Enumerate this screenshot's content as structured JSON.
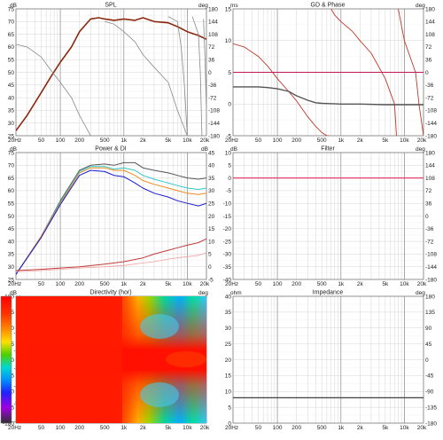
{
  "panels": {
    "spl": {
      "title": "SPL",
      "left_unit": "dB",
      "right_unit": "deg"
    },
    "gd": {
      "title": "GD & Phase",
      "left_unit": "ms",
      "right_unit": "deg"
    },
    "power": {
      "title": "Power & DI",
      "left_unit": "dB",
      "right_unit": "dB"
    },
    "filter": {
      "title": "Filter",
      "left_unit": "dB",
      "right_unit": "deg"
    },
    "directivity": {
      "title": "Directivity (hor)",
      "left_unit": "dB",
      "right_unit": "deg"
    },
    "impedance": {
      "title": "Impedance",
      "left_unit": "ohm",
      "right_unit": "deg"
    }
  },
  "colors": {
    "grid": "#d4d4d4",
    "frame": "#7a7a7a",
    "spl_main": "#8b2a10",
    "spl_gray": "#8a8a8a",
    "phase_red": "#c0392b",
    "magenta": "#c2185b",
    "gd_gray": "#555555",
    "di_red": "#c23a3a",
    "di_pink": "#f0a0a0",
    "filter_line": "#e0406a",
    "imp_line": "#404040"
  },
  "chart_data": [
    {
      "type": "line",
      "title": "SPL",
      "xscale": "log",
      "xlim": [
        20,
        20000
      ],
      "x_ticks": [
        "20Hz",
        "50",
        "100",
        "200",
        "500",
        "1k",
        "2k",
        "5k",
        "10k",
        "20k"
      ],
      "ylim": [
        25,
        75
      ],
      "y_ticks": [
        "75",
        "70",
        "65",
        "60",
        "55",
        "50",
        "45",
        "40",
        "35",
        "30",
        "25"
      ],
      "y2lim": [
        -180,
        180
      ],
      "y2_ticks": [
        "180",
        "144",
        "108",
        "72",
        "36",
        "0",
        "-36",
        "-72",
        "-108",
        "-144",
        "-180"
      ],
      "series": [
        {
          "role": "main",
          "x": [
            20,
            30,
            50,
            70,
            100,
            150,
            200,
            300,
            400,
            500,
            700,
            1000,
            1500,
            2000,
            3000,
            5000,
            7000,
            10000,
            15000,
            20000
          ],
          "y": [
            27,
            33,
            42,
            48,
            54,
            60,
            66,
            71,
            71.5,
            71,
            70.5,
            71,
            70.5,
            71.5,
            70,
            69.5,
            68,
            66,
            64.5,
            63
          ]
        },
        {
          "role": "gray",
          "x": [
            20,
            30,
            50,
            70,
            100,
            150,
            200,
            300
          ],
          "y": [
            61,
            60,
            56,
            51,
            46,
            40,
            33,
            25
          ]
        },
        {
          "role": "gray",
          "x": [
            500,
            700,
            1000,
            1500,
            2000,
            3000,
            5000,
            7000,
            10000
          ],
          "y": [
            70,
            69,
            66,
            62,
            57,
            52,
            46,
            35,
            25
          ]
        },
        {
          "role": "gray",
          "x": [
            5000,
            7000,
            8000,
            9000,
            10000
          ],
          "y": [
            72,
            70,
            60,
            45,
            25
          ]
        },
        {
          "role": "gray",
          "x": [
            12000,
            15000,
            16000,
            17000
          ],
          "y": [
            72,
            65,
            50,
            25
          ]
        },
        {
          "role": "gray",
          "x": [
            18000,
            19000,
            20000
          ],
          "y": [
            71,
            55,
            35
          ]
        }
      ]
    },
    {
      "type": "line",
      "title": "GD & Phase",
      "xscale": "log",
      "xlim": [
        20,
        20000
      ],
      "x_ticks": [
        "20Hz",
        "50",
        "100",
        "200",
        "500",
        "1k",
        "2k",
        "5k",
        "10k",
        "20k"
      ],
      "ylim": [
        -5,
        15
      ],
      "y_ticks": [
        "15",
        "10",
        "5",
        "0",
        "-5"
      ],
      "y2lim": [
        -180,
        180
      ],
      "y2_ticks": [
        "180",
        "144",
        "108",
        "72",
        "36",
        "0",
        "-36",
        "-72",
        "-108",
        "-144",
        "-180"
      ],
      "series": [
        {
          "role": "phase",
          "x": [
            20,
            30,
            50,
            70,
            100,
            150,
            200,
            300,
            400,
            500,
            600,
            650,
            700,
            800,
            1000,
            1500,
            2000,
            3000,
            5000,
            7000,
            7500,
            8000,
            10000,
            15000,
            17000,
            20000
          ],
          "y": [
            9.5,
            9,
            7.5,
            6,
            4,
            2,
            0.5,
            -2,
            -3.5,
            -4.5,
            -5,
            -5,
            15,
            14,
            13,
            11.5,
            10,
            8,
            4,
            0,
            -5,
            15,
            10,
            5,
            0,
            -5
          ]
        },
        {
          "role": "gd",
          "x": [
            20,
            30,
            50,
            70,
            100,
            150,
            200,
            300,
            400,
            500,
            1000,
            2000,
            5000,
            10000,
            20000
          ],
          "y": [
            2.7,
            2.7,
            2.7,
            2.6,
            2.4,
            2,
            1.3,
            0.6,
            0.2,
            0.1,
            0,
            0,
            -0.1,
            -0.1,
            -0.1
          ]
        },
        {
          "role": "mag",
          "x": [
            20,
            20000
          ],
          "y": [
            5,
            5
          ]
        }
      ]
    },
    {
      "type": "line",
      "title": "Power & DI",
      "xscale": "log",
      "xlim": [
        20,
        20000
      ],
      "x_ticks": [
        "20Hz",
        "50",
        "100",
        "200",
        "500",
        "1k",
        "2k",
        "5k",
        "10k",
        "20k"
      ],
      "ylim": [
        25,
        75
      ],
      "y_ticks": [
        "75",
        "70",
        "65",
        "60",
        "55",
        "50",
        "45",
        "40",
        "35",
        "30",
        "25"
      ],
      "y2_ticks": [
        "45",
        "40",
        "35",
        "30",
        "25",
        "20",
        "15",
        "10",
        "5",
        "0",
        "-5"
      ],
      "series": [
        {
          "role": "dark",
          "x": [
            20,
            50,
            100,
            200,
            300,
            500,
            700,
            1000,
            1500,
            2000,
            3000,
            5000,
            7000,
            10000,
            15000,
            20000
          ],
          "y": [
            27,
            42,
            56,
            68,
            70,
            70.5,
            70,
            71,
            71,
            69,
            68,
            67,
            66,
            65,
            64.5,
            65
          ]
        },
        {
          "role": "cyan",
          "x": [
            20,
            50,
            100,
            200,
            300,
            500,
            700,
            1000,
            1500,
            2000,
            3000,
            5000,
            7000,
            10000,
            15000,
            20000
          ],
          "y": [
            27,
            42,
            55.5,
            67.5,
            69.5,
            69.5,
            68.5,
            69,
            68,
            66,
            64.5,
            63,
            62,
            61,
            60.5,
            61
          ]
        },
        {
          "role": "orange",
          "x": [
            20,
            50,
            100,
            200,
            300,
            500,
            700,
            1000,
            1500,
            2000,
            3000,
            5000,
            7000,
            10000,
            15000,
            20000
          ],
          "y": [
            27,
            42,
            55,
            67,
            69,
            69,
            68,
            68,
            66,
            64,
            62.5,
            61,
            60,
            59,
            58.5,
            59
          ]
        },
        {
          "role": "blue",
          "x": [
            20,
            50,
            100,
            200,
            300,
            500,
            700,
            1000,
            1500,
            2000,
            3000,
            5000,
            7000,
            10000,
            15000,
            20000
          ],
          "y": [
            27,
            41.5,
            54.5,
            66,
            68,
            67.5,
            66,
            65.5,
            63,
            61,
            59,
            57.5,
            56,
            55,
            54,
            55
          ]
        },
        {
          "role": "di",
          "x": [
            20,
            50,
            100,
            200,
            500,
            1000,
            2000,
            3000,
            5000,
            7000,
            10000,
            15000,
            20000
          ],
          "y": [
            28.5,
            29,
            29.5,
            30,
            31,
            32,
            33.5,
            35,
            36.5,
            37.5,
            38.5,
            39.5,
            41
          ]
        },
        {
          "role": "di2",
          "x": [
            20,
            50,
            100,
            200,
            500,
            1000,
            2000,
            3000,
            5000,
            7000,
            10000,
            15000,
            20000
          ],
          "y": [
            28,
            28.5,
            29,
            29.5,
            30,
            30.5,
            31.5,
            32,
            33,
            33.5,
            34,
            34.5,
            35.5
          ]
        }
      ]
    },
    {
      "type": "line",
      "title": "Filter",
      "xscale": "log",
      "xlim": [
        20,
        20000
      ],
      "x_ticks": [
        "20Hz",
        "50",
        "100",
        "200",
        "500",
        "1k",
        "2k",
        "5k",
        "10k",
        "20k"
      ],
      "ylim": [
        -40,
        10
      ],
      "y_ticks": [
        "10",
        "5",
        "0",
        "-5",
        "-10",
        "-15",
        "-20",
        "-25",
        "-30",
        "-35",
        "-40"
      ],
      "y2_ticks": [
        "180",
        "144",
        "108",
        "72",
        "36",
        "0",
        "-36",
        "-72",
        "-108",
        "-144",
        "-180"
      ],
      "series": [
        {
          "role": "filter",
          "x": [
            20,
            20000
          ],
          "y": [
            0,
            0
          ]
        }
      ]
    },
    {
      "type": "heatmap",
      "title": "Directivity (hor)",
      "xscale": "log",
      "xlim": [
        20,
        20000
      ],
      "x_ticks": [
        "20Hz",
        "50",
        "100",
        "200",
        "500",
        "1k",
        "2k",
        "5k",
        "10k",
        "20k"
      ],
      "y_ticks": [
        "180",
        "135",
        "90",
        "45",
        "0",
        "-45",
        "-90",
        "-135",
        "-180"
      ],
      "colorbar_ticks": [
        "10",
        "0",
        "-10",
        "-20",
        "-30",
        "-40",
        "-50",
        "-60"
      ]
    },
    {
      "type": "line",
      "title": "Impedance",
      "xscale": "log",
      "xlim": [
        20,
        20000
      ],
      "x_ticks": [
        "20Hz",
        "50",
        "100",
        "200",
        "500",
        "1k",
        "2k",
        "5k",
        "10k",
        "20k"
      ],
      "ylim": [
        0,
        40
      ],
      "y_ticks": [
        "40",
        "35",
        "30",
        "25",
        "20",
        "15",
        "10",
        "5",
        "0"
      ],
      "y2_ticks": [
        "180",
        "135",
        "90",
        "45",
        "0",
        "-45",
        "-90",
        "-135",
        "-180"
      ],
      "series": [
        {
          "role": "imp",
          "x": [
            20,
            20000
          ],
          "y": [
            8,
            8
          ]
        }
      ]
    }
  ]
}
